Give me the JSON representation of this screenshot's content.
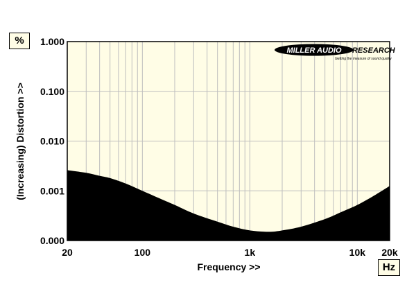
{
  "units": {
    "y": "%",
    "x": "Hz"
  },
  "logo": {
    "left": "MILLER AUDIO",
    "right": "RESEARCH",
    "tagline": "Getting the measure of sound quality"
  },
  "chart_data": {
    "type": "area",
    "xlabel": "Frequency >>",
    "ylabel": "(Increasing) Distortion >>",
    "xscale": "log",
    "yscale": "log",
    "xlim": [
      20,
      20000
    ],
    "ylim_labels": [
      "0.000",
      "0.001",
      "0.010",
      "0.100",
      "1.000"
    ],
    "x_ticks": [
      {
        "value": 20,
        "label": "20"
      },
      {
        "value": 100,
        "label": "100"
      },
      {
        "value": 1000,
        "label": "1k"
      },
      {
        "value": 10000,
        "label": "10k"
      },
      {
        "value": 20000,
        "label": "20k"
      }
    ],
    "grid": true,
    "colors": {
      "plot_bg": "#fffde6",
      "fill": "#000000",
      "grid": "#bdbdbd"
    },
    "series": [
      {
        "x": [
          20,
          30,
          40,
          50,
          70,
          100,
          150,
          200,
          300,
          500,
          700,
          1000,
          1500,
          2000,
          3000,
          5000,
          7000,
          10000,
          15000,
          20000
        ],
        "y": [
          0.0026,
          0.0023,
          0.002,
          0.0018,
          0.0014,
          0.001,
          0.00068,
          0.00052,
          0.00035,
          0.00024,
          0.00019,
          0.00016,
          0.00015,
          0.00016,
          0.00019,
          0.00027,
          0.00037,
          0.00052,
          0.00085,
          0.00125
        ]
      }
    ]
  }
}
